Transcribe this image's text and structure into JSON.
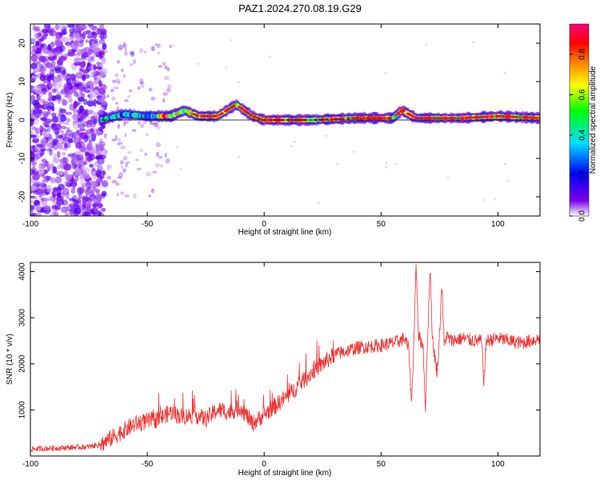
{
  "title": "PAZ1.2024.270.08.19.G29",
  "chart_data": [
    {
      "type": "heatmap",
      "xlabel": "Height of straight line (km)",
      "ylabel": "Frequency (Hz)",
      "xlim": [
        -100,
        118
      ],
      "ylim": [
        -25,
        25
      ],
      "xticks": [
        -100,
        -50,
        0,
        50,
        100
      ],
      "yticks": [
        -20,
        -10,
        0,
        10,
        20
      ],
      "colorbar": {
        "label": "Normalized spectral amplitude",
        "range": [
          0,
          0.95
        ],
        "ticks": [
          "0.0",
          "0.2",
          "0.4",
          "0.6",
          "0.8"
        ],
        "colormap": [
          "#ffffff",
          "#7b00e8",
          "#0000ff",
          "#00e0ff",
          "#00ff00",
          "#ffff00",
          "#ff8000",
          "#ff0000",
          "#ff0080"
        ]
      },
      "ridge": [
        {
          "x": -70,
          "y": 0.0
        },
        {
          "x": -60,
          "y": 1.5
        },
        {
          "x": -50,
          "y": 1.0
        },
        {
          "x": -40,
          "y": 1.0
        },
        {
          "x": -34,
          "y": 2.5
        },
        {
          "x": -28,
          "y": 1.0
        },
        {
          "x": -20,
          "y": 1.0
        },
        {
          "x": -12,
          "y": 4.0
        },
        {
          "x": -5,
          "y": 1.0
        },
        {
          "x": 0,
          "y": 0.0
        },
        {
          "x": 20,
          "y": 0.0
        },
        {
          "x": 40,
          "y": 0.5
        },
        {
          "x": 55,
          "y": 0.5
        },
        {
          "x": 59,
          "y": 2.5
        },
        {
          "x": 65,
          "y": 0.5
        },
        {
          "x": 85,
          "y": 0.5
        },
        {
          "x": 100,
          "y": 1.0
        },
        {
          "x": 118,
          "y": 0.5
        }
      ]
    },
    {
      "type": "line",
      "xlabel": "Height of straight line (km)",
      "ylabel": "SNR (10 * v/v)",
      "xlim": [
        -100,
        118
      ],
      "ylim": [
        0,
        4200
      ],
      "xticks": [
        -100,
        -50,
        0,
        50,
        100
      ],
      "yticks": [
        1000,
        2000,
        3000,
        4000
      ],
      "series": [
        {
          "color": "#ee3333",
          "x": [
            -100,
            -90,
            -80,
            -75,
            -70,
            -65,
            -60,
            -55,
            -50,
            -45,
            -40,
            -35,
            -30,
            -25,
            -20,
            -15,
            -10,
            -5,
            0,
            10,
            20,
            30,
            40,
            50,
            55,
            58,
            60,
            62,
            63,
            64,
            65,
            66,
            68,
            69,
            70,
            71,
            72,
            74,
            75,
            76,
            77,
            78,
            80,
            85,
            90,
            93,
            94,
            95,
            100,
            110,
            118
          ],
          "y": [
            150,
            170,
            190,
            200,
            250,
            400,
            550,
            700,
            750,
            800,
            950,
            850,
            900,
            800,
            1000,
            950,
            1050,
            700,
            900,
            1300,
            1800,
            2200,
            2350,
            2400,
            2450,
            2500,
            2550,
            2300,
            1100,
            2400,
            4200,
            2600,
            2400,
            1000,
            2700,
            4100,
            2500,
            1800,
            2600,
            3800,
            2400,
            2600,
            2500,
            2550,
            2500,
            2500,
            1600,
            2500,
            2550,
            2450,
            2550
          ]
        }
      ]
    }
  ]
}
